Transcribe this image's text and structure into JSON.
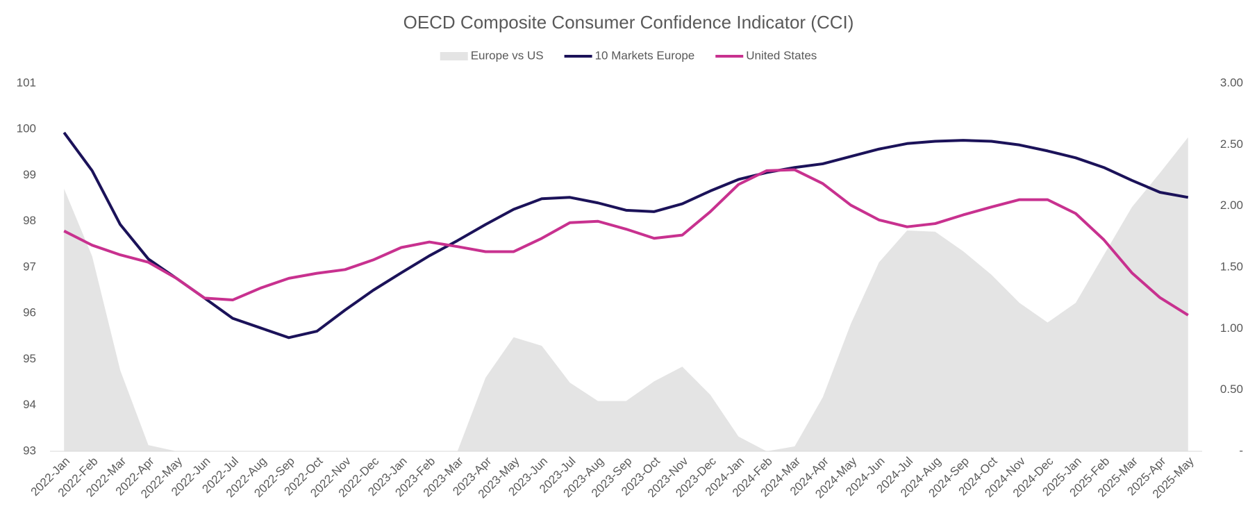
{
  "chart_data": {
    "type": "line",
    "title": "OECD Composite Consumer Confidence Indicator  (CCI)",
    "categories": [
      "2022-Jan",
      "2022-Feb",
      "2022-Mar",
      "2022-Apr",
      "2022-May",
      "2022-Jun",
      "2022-Jul",
      "2022-Aug",
      "2022-Sep",
      "2022-Oct",
      "2022-Nov",
      "2022-Dec",
      "2023-Jan",
      "2023-Feb",
      "2023-Mar",
      "2023-Apr",
      "2023-May",
      "2023-Jun",
      "2023-Jul",
      "2023-Aug",
      "2023-Sep",
      "2023-Oct",
      "2023-Nov",
      "2023-Dec",
      "2024-Jan",
      "2024-Feb",
      "2024-Mar",
      "2024-Apr",
      "2024-May",
      "2024-Jun",
      "2024-Jul",
      "2024-Aug",
      "2024-Sep",
      "2024-Oct",
      "2024-Nov",
      "2024-Dec",
      "2025-Jan",
      "2025-Feb",
      "2025-Mar",
      "2025-Apr",
      "2025-May"
    ],
    "series": [
      {
        "name": "Europe vs US",
        "color": "#e4e4e4",
        "style": "area",
        "axis": "y2",
        "values": [
          2.14,
          1.59,
          0.66,
          0.05,
          0,
          0,
          0,
          0,
          0,
          0,
          0,
          0,
          0,
          0,
          0,
          0.6,
          0.93,
          0.86,
          0.56,
          0.41,
          0.41,
          0.57,
          0.69,
          0.46,
          0.12,
          0,
          0.04,
          0.44,
          1.04,
          1.54,
          1.8,
          1.79,
          1.63,
          1.44,
          1.21,
          1.05,
          1.21,
          1.6,
          1.99,
          2.27,
          2.56
        ]
      },
      {
        "name": "10 Markets Europe",
        "color": "#1b1259",
        "style": "line",
        "values": [
          99.93,
          99.1,
          97.93,
          97.18,
          96.76,
          96.33,
          95.89,
          95.68,
          95.47,
          95.61,
          96.07,
          96.5,
          96.88,
          97.25,
          97.58,
          97.93,
          98.26,
          98.49,
          98.52,
          98.4,
          98.24,
          98.21,
          98.38,
          98.66,
          98.91,
          99.06,
          99.17,
          99.25,
          99.41,
          99.57,
          99.69,
          99.74,
          99.76,
          99.74,
          99.66,
          99.53,
          99.38,
          99.17,
          98.89,
          98.63,
          98.52
        ]
      },
      {
        "name": "United States",
        "color": "#c8318f",
        "style": "line",
        "values": [
          97.79,
          97.48,
          97.27,
          97.11,
          96.76,
          96.33,
          96.29,
          96.55,
          96.76,
          96.87,
          96.95,
          97.16,
          97.43,
          97.55,
          97.45,
          97.34,
          97.34,
          97.63,
          97.97,
          98.0,
          97.83,
          97.63,
          97.7,
          98.21,
          98.8,
          99.1,
          99.12,
          98.82,
          98.35,
          98.03,
          97.88,
          97.95,
          98.14,
          98.31,
          98.47,
          98.47,
          98.17,
          97.6,
          96.88,
          96.34,
          95.96
        ]
      }
    ],
    "ylim": [
      93,
      101
    ],
    "yticks": [
      93,
      94,
      95,
      96,
      97,
      98,
      99,
      100,
      101
    ],
    "y2lim": [
      0,
      3
    ],
    "y2ticks": [
      {
        "value": 0,
        "label": "-"
      },
      {
        "value": 0.5,
        "label": "0.50"
      },
      {
        "value": 1,
        "label": "1.00"
      },
      {
        "value": 1.5,
        "label": "1.50"
      },
      {
        "value": 2,
        "label": "2.00"
      },
      {
        "value": 2.5,
        "label": "2.50"
      },
      {
        "value": 3,
        "label": "3.00"
      }
    ],
    "grid": false,
    "legend": "top"
  }
}
